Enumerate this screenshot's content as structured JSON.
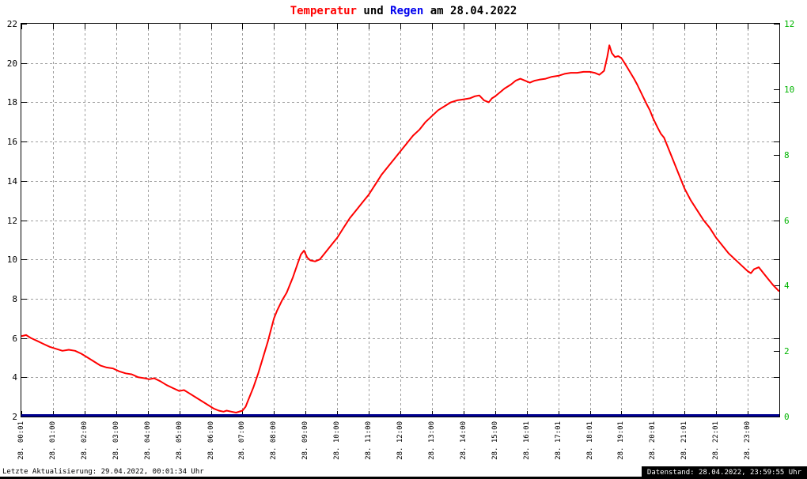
{
  "title": {
    "temperatur": "Temperatur",
    "und": " und ",
    "regen": "Regen",
    "date": " am 28.04.2022"
  },
  "footer": {
    "left": "Letzte Aktualisierung: 29.04.2022, 00:01:34 Uhr",
    "right": "Datenstand: 28.04.2022, 23:59:55 Uhr"
  },
  "colors": {
    "temperature_line": "#ff0000",
    "rain_line": "#000090",
    "title_temperatur": "#ff0000",
    "title_regen": "#0000ee",
    "right_axis_labels": "#00b400",
    "grid": "#9e9e9e",
    "axis": "#000000",
    "footer_box_bg": "#000000",
    "footer_box_text": "#ffffff"
  },
  "chart_data": {
    "type": "line",
    "title": "Temperatur und Regen am 28.04.2022",
    "grid": true,
    "legend": "none",
    "x_axis": {
      "unit": "hour_of_day",
      "min": 0,
      "max": 24,
      "tick_hours": [
        0,
        1,
        2,
        3,
        4,
        5,
        6,
        7,
        8,
        9,
        10,
        11,
        12,
        13,
        14,
        15,
        16,
        17,
        18,
        19,
        20,
        21,
        22,
        23
      ],
      "tick_labels": [
        "28. 00:01",
        "28. 01:00",
        "28. 02:00",
        "28. 03:00",
        "28. 04:00",
        "28. 05:00",
        "28. 06:00",
        "28. 07:00",
        "28. 08:00",
        "28. 09:00",
        "28. 10:00",
        "28. 11:00",
        "28. 12:00",
        "28. 13:00",
        "28. 14:00",
        "28. 15:00",
        "28. 16:01",
        "28. 17:01",
        "28. 18:01",
        "28. 19:01",
        "28. 20:01",
        "28. 21:01",
        "28. 22:01",
        "28. 23:00"
      ]
    },
    "y_left": {
      "min": 2,
      "max": 22,
      "ticks": [
        2,
        4,
        6,
        8,
        10,
        12,
        14,
        16,
        18,
        20,
        22
      ]
    },
    "y_right": {
      "min": 0,
      "max": 12,
      "ticks": [
        0,
        2,
        4,
        6,
        8,
        10,
        12
      ]
    },
    "series": [
      {
        "name": "Temperatur",
        "axis": "left",
        "color": "#ff0000",
        "width": 2,
        "x": [
          0.02,
          0.15,
          0.3,
          0.5,
          0.7,
          0.9,
          1.1,
          1.3,
          1.5,
          1.7,
          1.9,
          2.1,
          2.3,
          2.5,
          2.7,
          2.9,
          3.1,
          3.3,
          3.5,
          3.7,
          3.9,
          4.05,
          4.2,
          4.4,
          4.6,
          4.8,
          5.0,
          5.15,
          5.3,
          5.5,
          5.7,
          5.9,
          6.1,
          6.25,
          6.4,
          6.5,
          6.65,
          6.8,
          7.0,
          7.1,
          7.2,
          7.35,
          7.5,
          7.65,
          7.8,
          7.9,
          8.0,
          8.1,
          8.25,
          8.4,
          8.5,
          8.6,
          8.75,
          8.85,
          8.95,
          9.05,
          9.15,
          9.3,
          9.45,
          9.6,
          9.75,
          9.9,
          10.0,
          10.2,
          10.4,
          10.6,
          10.8,
          11.0,
          11.2,
          11.4,
          11.6,
          11.8,
          12.0,
          12.2,
          12.4,
          12.6,
          12.8,
          13.0,
          13.2,
          13.4,
          13.6,
          13.8,
          14.0,
          14.2,
          14.35,
          14.5,
          14.65,
          14.8,
          14.9,
          15.0,
          15.15,
          15.3,
          15.5,
          15.65,
          15.8,
          15.95,
          16.1,
          16.25,
          16.4,
          16.6,
          16.8,
          17.0,
          17.2,
          17.4,
          17.6,
          17.8,
          18.0,
          18.15,
          18.3,
          18.45,
          18.55,
          18.62,
          18.7,
          18.8,
          18.9,
          19.0,
          19.1,
          19.25,
          19.4,
          19.5,
          19.65,
          19.8,
          19.9,
          20.0,
          20.15,
          20.25,
          20.35,
          20.5,
          20.65,
          20.8,
          21.0,
          21.2,
          21.4,
          21.6,
          21.8,
          22.0,
          22.2,
          22.4,
          22.6,
          22.8,
          23.0,
          23.1,
          23.2,
          23.35,
          23.5,
          23.65,
          23.8,
          23.98
        ],
        "y": [
          6.1,
          6.15,
          6.0,
          5.85,
          5.7,
          5.55,
          5.45,
          5.35,
          5.4,
          5.35,
          5.2,
          5.0,
          4.8,
          4.6,
          4.5,
          4.45,
          4.3,
          4.2,
          4.15,
          4.0,
          3.95,
          3.9,
          3.95,
          3.8,
          3.6,
          3.45,
          3.3,
          3.35,
          3.2,
          3.0,
          2.8,
          2.6,
          2.4,
          2.3,
          2.25,
          2.3,
          2.25,
          2.2,
          2.3,
          2.5,
          2.9,
          3.5,
          4.2,
          5.0,
          5.8,
          6.4,
          7.0,
          7.4,
          7.9,
          8.3,
          8.7,
          9.1,
          9.8,
          10.25,
          10.45,
          10.1,
          9.95,
          9.9,
          10.0,
          10.3,
          10.6,
          10.9,
          11.1,
          11.6,
          12.1,
          12.5,
          12.9,
          13.3,
          13.8,
          14.3,
          14.7,
          15.1,
          15.5,
          15.9,
          16.3,
          16.6,
          17.0,
          17.3,
          17.6,
          17.8,
          18.0,
          18.1,
          18.15,
          18.2,
          18.3,
          18.35,
          18.1,
          18.0,
          18.2,
          18.3,
          18.5,
          18.7,
          18.9,
          19.1,
          19.2,
          19.1,
          19.0,
          19.1,
          19.15,
          19.2,
          19.3,
          19.35,
          19.45,
          19.5,
          19.5,
          19.55,
          19.55,
          19.5,
          19.4,
          19.6,
          20.3,
          20.9,
          20.5,
          20.3,
          20.35,
          20.25,
          20.0,
          19.6,
          19.2,
          18.9,
          18.4,
          17.9,
          17.6,
          17.2,
          16.7,
          16.4,
          16.2,
          15.6,
          15.0,
          14.4,
          13.6,
          13.0,
          12.5,
          12.0,
          11.6,
          11.1,
          10.7,
          10.3,
          10.0,
          9.7,
          9.4,
          9.3,
          9.5,
          9.6,
          9.3,
          9.0,
          8.7,
          8.4
        ]
      },
      {
        "name": "Regen",
        "axis": "right",
        "color": "#000090",
        "width": 3,
        "x": [
          0.0,
          24.0
        ],
        "y": [
          0.0,
          0.0
        ]
      }
    ]
  }
}
